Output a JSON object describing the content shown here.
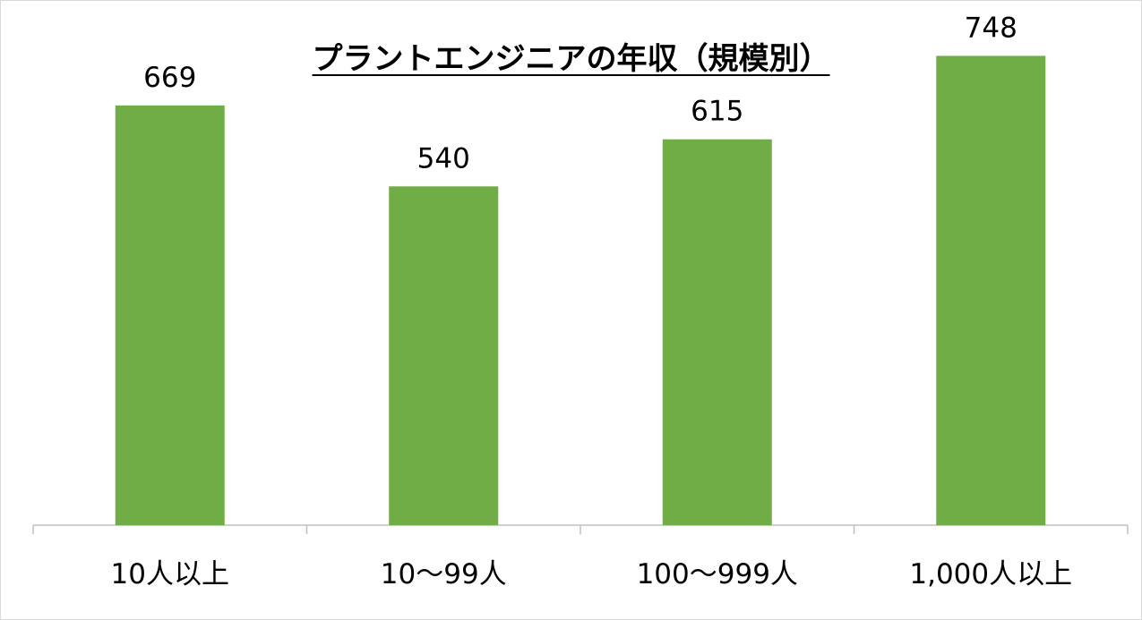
{
  "chart_data": {
    "type": "bar",
    "title": "プラントエンジニアの年収（規模別）",
    "categories": [
      "10人以上",
      "10〜99人",
      "100〜999人",
      "1,000人以上"
    ],
    "values": [
      669,
      540,
      615,
      748
    ],
    "xlabel": "",
    "ylabel": "",
    "ylim": [
      0,
      780
    ],
    "grid": false,
    "legend": "none",
    "bar_color": "#70AD47",
    "data_labels": true
  }
}
